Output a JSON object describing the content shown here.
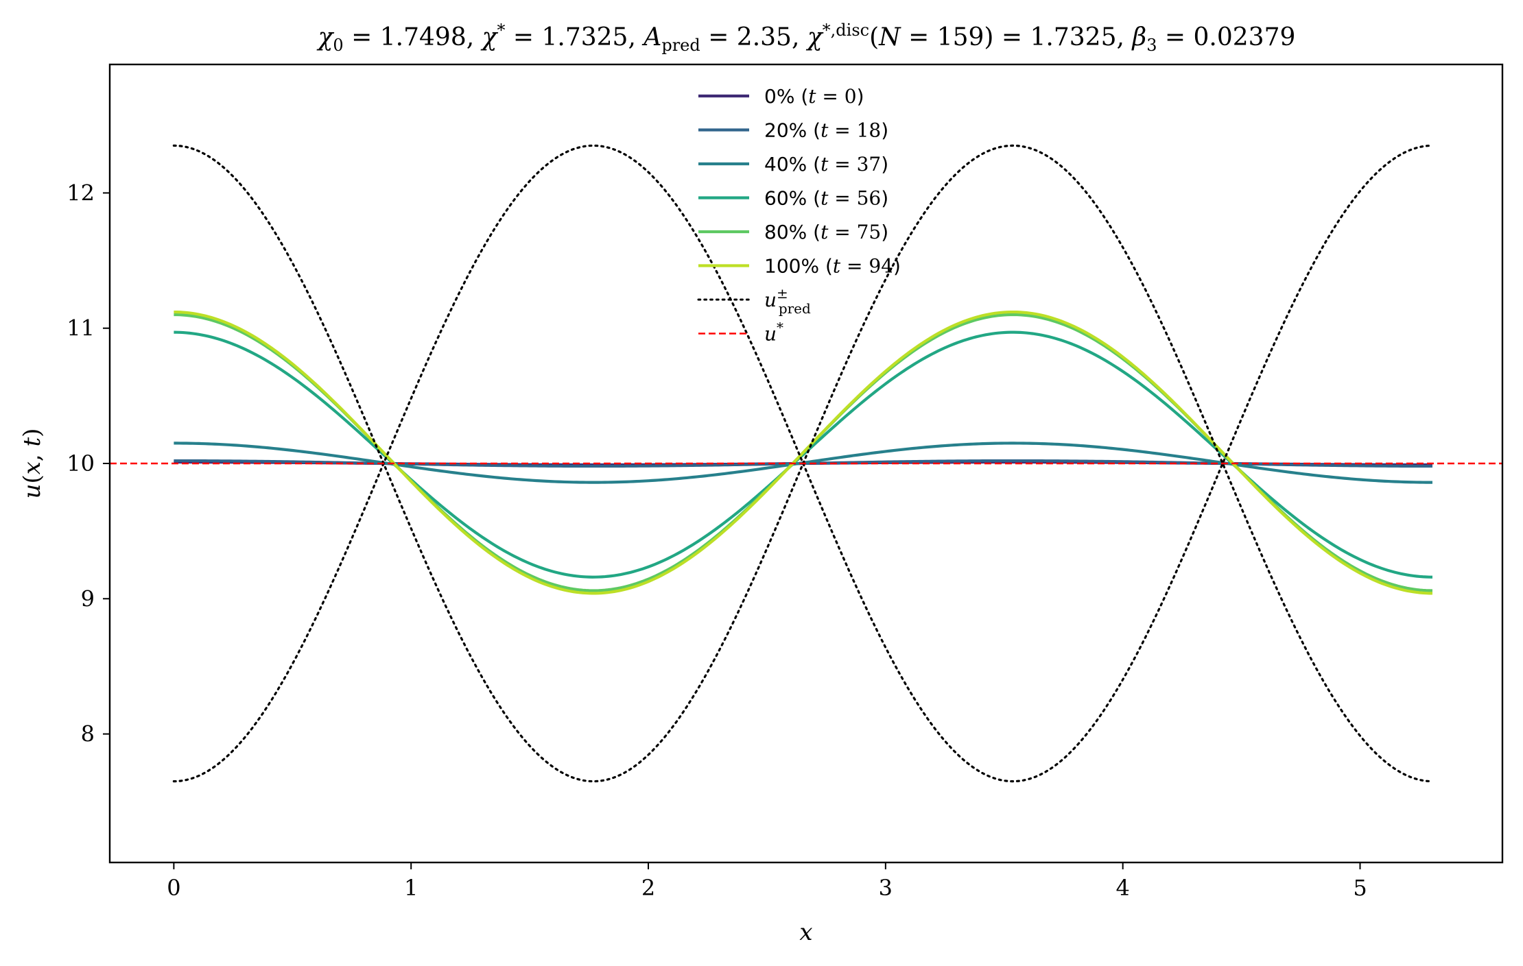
{
  "chart_data": {
    "type": "line",
    "title": "χ₀ = 1.7498,  χ* = 1.7325,  A_pred = 2.35,  χ*,disc(N = 159) = 1.7325,  β₃ = 0.02379",
    "title_parts": {
      "chi0": "χ₀ = 1.7498,",
      "chistar": "χ* = 1.7325,",
      "apred": "A_pred = 2.35,",
      "chidisc": "χ*,disc(N = 159) = 1.7325,",
      "beta3": "β₃ = 0.02379"
    },
    "xlabel": "x",
    "ylabel": "u(x, t)",
    "xlim": [
      -0.27,
      5.6
    ],
    "ylim": [
      7.05,
      12.95
    ],
    "xticks": [
      0,
      1,
      2,
      3,
      4,
      5
    ],
    "yticks": [
      8,
      9,
      10,
      11,
      12
    ],
    "legend_position": "top-center",
    "domain_L": 5.305,
    "u_star": 10.0,
    "series": [
      {
        "name": "0% (t = 0)",
        "pct": "0%",
        "tval": "0",
        "color": "#3e2a74",
        "style": "solid",
        "x": [
          0,
          0.663,
          1.326,
          1.989,
          2.653,
          3.316,
          3.979,
          4.642,
          5.305
        ],
        "y": [
          10.01,
          10.007,
          10.0,
          9.993,
          9.99,
          9.993,
          10.0,
          10.007,
          10.01
        ]
      },
      {
        "name": "20% (t = 18)",
        "pct": "20%",
        "tval": "18",
        "color": "#31658c",
        "style": "solid",
        "x": [
          0,
          0.663,
          1.326,
          1.989,
          2.653,
          3.316,
          3.979,
          4.642,
          5.305
        ],
        "y": [
          10.02,
          10.014,
          10.0,
          9.986,
          9.98,
          9.986,
          10.0,
          10.014,
          10.02
        ]
      },
      {
        "name": "40% (t = 37)",
        "pct": "40%",
        "tval": "37",
        "color": "#27808c",
        "style": "solid",
        "x": [
          0,
          0.663,
          1.326,
          1.989,
          2.653,
          3.316,
          3.979,
          4.642,
          5.305
        ],
        "y": [
          10.15,
          10.106,
          10.0,
          9.894,
          9.86,
          9.894,
          10.0,
          10.106,
          10.15
        ]
      },
      {
        "name": "60% (t = 56)",
        "pct": "60%",
        "tval": "56",
        "color": "#22a784",
        "style": "solid",
        "x": [
          0,
          0.663,
          1.326,
          1.989,
          2.653,
          3.316,
          3.979,
          4.642,
          5.305
        ],
        "y": [
          10.97,
          10.675,
          9.95,
          9.2,
          9.16,
          9.2,
          9.95,
          10.675,
          10.97
        ]
      },
      {
        "name": "80% (t = 75)",
        "pct": "80%",
        "tval": "75",
        "color": "#5ec962",
        "style": "solid",
        "x": [
          0,
          0.663,
          1.326,
          1.989,
          2.653,
          3.316,
          3.979,
          4.642,
          5.305
        ],
        "y": [
          11.1,
          10.77,
          9.96,
          9.1,
          9.06,
          9.1,
          9.96,
          10.77,
          11.1
        ]
      },
      {
        "name": "100% (t = 94)",
        "pct": "100%",
        "tval": "94",
        "color": "#bddf26",
        "style": "solid",
        "x": [
          0,
          0.663,
          1.326,
          1.989,
          2.653,
          3.316,
          3.979,
          4.642,
          5.305
        ],
        "y": [
          11.12,
          10.79,
          9.96,
          9.08,
          9.04,
          9.08,
          9.96,
          10.79,
          11.12
        ]
      },
      {
        "name": "u±pred (upper)",
        "color": "#000000",
        "style": "dotted",
        "x": [
          0,
          0.884,
          1.768,
          2.653,
          3.537,
          4.421,
          5.305
        ],
        "y": [
          12.35,
          10.0,
          12.35,
          10.0,
          12.35,
          10.0,
          12.35
        ]
      },
      {
        "name": "u±pred (lower)",
        "color": "#000000",
        "style": "dotted",
        "x": [
          0,
          0.884,
          1.768,
          2.653,
          3.537,
          4.421,
          5.305
        ],
        "y": [
          7.65,
          10.0,
          7.65,
          10.0,
          7.65,
          10.0,
          7.65
        ]
      },
      {
        "name": "u*",
        "color": "#ff0000",
        "style": "dashed",
        "x": [
          -0.27,
          5.6
        ],
        "y": [
          10.0,
          10.0
        ]
      }
    ],
    "legend": [
      {
        "label": "0% (t = 0)",
        "pct": "0%",
        "tval": "0",
        "color": "#3e2a74",
        "style": "solid"
      },
      {
        "label": "20% (t = 18)",
        "pct": "20%",
        "tval": "18",
        "color": "#31658c",
        "style": "solid"
      },
      {
        "label": "40% (t = 37)",
        "pct": "40%",
        "tval": "37",
        "color": "#27808c",
        "style": "solid"
      },
      {
        "label": "60% (t = 56)",
        "pct": "60%",
        "tval": "56",
        "color": "#22a784",
        "style": "solid"
      },
      {
        "label": "80% (t = 75)",
        "pct": "80%",
        "tval": "75",
        "color": "#5ec962",
        "style": "solid"
      },
      {
        "label": "100% (t = 94)",
        "pct": "100%",
        "tval": "94",
        "color": "#bddf26",
        "style": "solid"
      },
      {
        "label": "u±pred",
        "color": "#000000",
        "style": "dotted"
      },
      {
        "label": "u*",
        "color": "#ff0000",
        "style": "dashed"
      }
    ]
  }
}
